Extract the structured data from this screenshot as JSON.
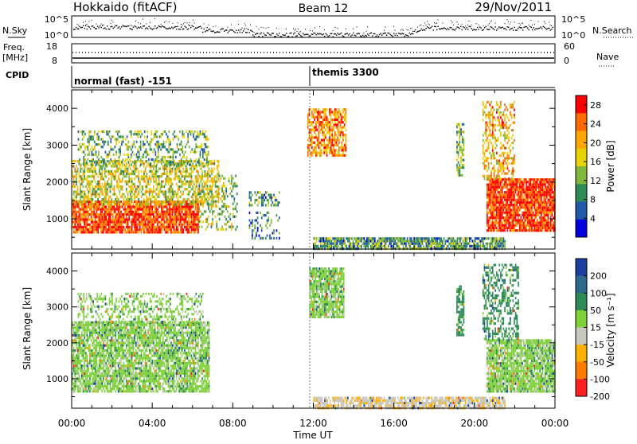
{
  "header": {
    "station": "Hokkaido (fitACF)",
    "beam": "Beam 12",
    "date": "29/Nov/2011"
  },
  "noise_panel": {
    "left_label": "N.Sky",
    "right_label": "N.Search",
    "left_ticks": [
      "10^5",
      "10^0"
    ],
    "right_ticks": [
      "10^5",
      "10^0"
    ]
  },
  "freq_panel": {
    "left_label_1": "Freq.",
    "left_label_2": "[MHz]",
    "left_ticks": [
      "18",
      "8"
    ],
    "right_ticks": [
      "60",
      "0"
    ],
    "right_label": "Nave"
  },
  "cpid_panel": {
    "label": "CPID",
    "modes": [
      {
        "name": "normal (fast) -151",
        "start_hour": 0
      },
      {
        "name": "themis 3300",
        "start_hour": 12
      }
    ]
  },
  "chart_data": [
    {
      "type": "heatmap",
      "panel": "power",
      "ylabel": "Slant Range [km]",
      "xlabel": "Time UT",
      "x_ticks": [
        "00:00",
        "04:00",
        "08:00",
        "12:00",
        "16:00",
        "20:00",
        "00:00"
      ],
      "xlim_hours": [
        0,
        24
      ],
      "y_ticks": [
        1000,
        2000,
        3000,
        4000
      ],
      "ylim": [
        180,
        4500
      ],
      "colorbar": {
        "label": "Power [dB]",
        "ticks": [
          4,
          8,
          12,
          16,
          20,
          24,
          28
        ],
        "range": [
          0,
          30
        ],
        "colors": [
          "#0000dd",
          "#1e5aa8",
          "#2e8b57",
          "#7fb83a",
          "#e6d200",
          "#ffa500",
          "#ff6a00",
          "#ff0000"
        ]
      },
      "regions": [
        {
          "t0": 0.0,
          "t1": 6.3,
          "r0": 650,
          "r1": 1500,
          "level": 26,
          "density": 0.85
        },
        {
          "t0": 0.0,
          "t1": 7.3,
          "r0": 1400,
          "r1": 2600,
          "level": 16,
          "density": 0.55
        },
        {
          "t0": 0.3,
          "t1": 6.8,
          "r0": 2500,
          "r1": 3400,
          "level": 12,
          "density": 0.35
        },
        {
          "t0": 6.3,
          "t1": 8.2,
          "r0": 700,
          "r1": 2200,
          "level": 14,
          "density": 0.28
        },
        {
          "t0": 8.8,
          "t1": 10.3,
          "r0": 1400,
          "r1": 1750,
          "level": 10,
          "density": 0.45
        },
        {
          "t0": 8.8,
          "t1": 10.3,
          "r0": 450,
          "r1": 1200,
          "level": 8,
          "density": 0.25
        },
        {
          "t0": 11.7,
          "t1": 13.6,
          "r0": 2700,
          "r1": 4000,
          "level": 22,
          "density": 0.7
        },
        {
          "t0": 12.0,
          "t1": 21.5,
          "r0": 200,
          "r1": 500,
          "level": 10,
          "density": 0.8
        },
        {
          "t0": 19.1,
          "t1": 19.5,
          "r0": 2200,
          "r1": 3600,
          "level": 12,
          "density": 0.6
        },
        {
          "t0": 20.6,
          "t1": 24.0,
          "r0": 650,
          "r1": 2100,
          "level": 27,
          "density": 0.9
        },
        {
          "t0": 20.4,
          "t1": 22.0,
          "r0": 2100,
          "r1": 4200,
          "level": 20,
          "density": 0.45
        }
      ]
    },
    {
      "type": "heatmap",
      "panel": "velocity",
      "ylabel": "Slant Range [km]",
      "xlabel": "Time UT",
      "x_ticks": [
        "00:00",
        "04:00",
        "08:00",
        "12:00",
        "16:00",
        "20:00",
        "00:00"
      ],
      "xlim_hours": [
        0,
        24
      ],
      "y_ticks": [
        1000,
        2000,
        3000,
        4000
      ],
      "ylim": [
        180,
        4500
      ],
      "colorbar": {
        "label": "Velocity [m s⁻¹]",
        "ticks": [
          200,
          100,
          50,
          15,
          -15,
          -50,
          -100,
          -200
        ],
        "colors": [
          "#1a3fa0",
          "#2e6a8c",
          "#2e8b57",
          "#7fd13a",
          "#c8c8c0",
          "#ffb000",
          "#ff7a00",
          "#ff2020"
        ]
      },
      "regions": [
        {
          "t0": 0.0,
          "t1": 6.8,
          "r0": 650,
          "r1": 2600,
          "level": 0,
          "density": 0.8
        },
        {
          "t0": 0.3,
          "t1": 6.5,
          "r0": 2500,
          "r1": 3400,
          "level": 0,
          "density": 0.35
        },
        {
          "t0": 11.8,
          "t1": 13.5,
          "r0": 2700,
          "r1": 4100,
          "level": 0,
          "density": 0.85
        },
        {
          "t0": 12.0,
          "t1": 21.5,
          "r0": 200,
          "r1": 500,
          "level": -40,
          "density": 0.8
        },
        {
          "t0": 19.1,
          "t1": 19.5,
          "r0": 2200,
          "r1": 3600,
          "level": 30,
          "density": 0.7
        },
        {
          "t0": 20.6,
          "t1": 24.0,
          "r0": 650,
          "r1": 2100,
          "level": 0,
          "density": 0.85
        },
        {
          "t0": 20.4,
          "t1": 22.2,
          "r0": 2100,
          "r1": 4200,
          "level": 30,
          "density": 0.45
        }
      ]
    }
  ]
}
